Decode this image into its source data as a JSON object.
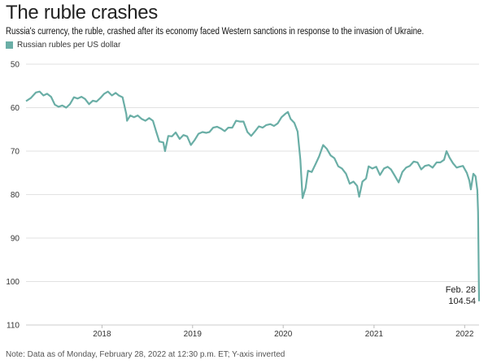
{
  "header": {
    "title": "The ruble crashes",
    "subtitle": "Russia's currency, the ruble, crashed after its economy faced Western sanctions in response to the invasion of Ukraine."
  },
  "footer": {
    "note": "Note: Data as of Monday, February 28, 2022 at 12:30 p.m. ET; Y-axis inverted"
  },
  "chart_data": {
    "type": "line",
    "title": "The ruble crashes",
    "legend": {
      "placement": "top-left",
      "entries": [
        "Russian rubles per US dollar"
      ]
    },
    "series": [
      {
        "name": "Russian rubles per US dollar",
        "color": "#6aaea6",
        "points": [
          [
            "2017-03-01",
            58.5
          ],
          [
            "2017-03-20",
            57.8
          ],
          [
            "2017-04-10",
            56.5
          ],
          [
            "2017-04-25",
            56.3
          ],
          [
            "2017-05-10",
            57.2
          ],
          [
            "2017-05-25",
            56.8
          ],
          [
            "2017-06-10",
            57.5
          ],
          [
            "2017-06-25",
            59.3
          ],
          [
            "2017-07-10",
            59.8
          ],
          [
            "2017-07-25",
            59.5
          ],
          [
            "2017-08-10",
            60.0
          ],
          [
            "2017-08-25",
            59.2
          ],
          [
            "2017-09-10",
            57.6
          ],
          [
            "2017-09-25",
            57.9
          ],
          [
            "2017-10-10",
            57.5
          ],
          [
            "2017-10-25",
            58.0
          ],
          [
            "2017-11-10",
            59.2
          ],
          [
            "2017-11-25",
            58.4
          ],
          [
            "2017-12-10",
            58.6
          ],
          [
            "2017-12-25",
            57.8
          ],
          [
            "2018-01-10",
            56.8
          ],
          [
            "2018-01-25",
            56.3
          ],
          [
            "2018-02-10",
            57.2
          ],
          [
            "2018-02-25",
            56.6
          ],
          [
            "2018-03-10",
            57.2
          ],
          [
            "2018-03-25",
            57.6
          ],
          [
            "2018-04-09",
            61.5
          ],
          [
            "2018-04-12",
            63.0
          ],
          [
            "2018-04-25",
            61.8
          ],
          [
            "2018-05-10",
            62.2
          ],
          [
            "2018-05-25",
            61.8
          ],
          [
            "2018-06-10",
            62.6
          ],
          [
            "2018-06-25",
            63.0
          ],
          [
            "2018-07-10",
            62.4
          ],
          [
            "2018-07-25",
            63.0
          ],
          [
            "2018-08-08",
            65.6
          ],
          [
            "2018-08-20",
            67.8
          ],
          [
            "2018-09-05",
            68.0
          ],
          [
            "2018-09-12",
            70.0
          ],
          [
            "2018-09-25",
            66.5
          ],
          [
            "2018-10-10",
            66.6
          ],
          [
            "2018-10-25",
            65.7
          ],
          [
            "2018-11-10",
            67.2
          ],
          [
            "2018-11-25",
            66.3
          ],
          [
            "2018-12-10",
            66.6
          ],
          [
            "2018-12-25",
            68.6
          ],
          [
            "2019-01-10",
            67.4
          ],
          [
            "2019-01-25",
            66.0
          ],
          [
            "2019-02-10",
            65.6
          ],
          [
            "2019-02-25",
            65.8
          ],
          [
            "2019-03-10",
            65.6
          ],
          [
            "2019-03-25",
            64.6
          ],
          [
            "2019-04-10",
            64.4
          ],
          [
            "2019-04-25",
            64.8
          ],
          [
            "2019-05-10",
            65.4
          ],
          [
            "2019-05-25",
            64.6
          ],
          [
            "2019-06-10",
            64.6
          ],
          [
            "2019-06-25",
            63.0
          ],
          [
            "2019-07-10",
            63.2
          ],
          [
            "2019-07-25",
            63.2
          ],
          [
            "2019-08-10",
            65.6
          ],
          [
            "2019-08-25",
            66.5
          ],
          [
            "2019-09-10",
            65.4
          ],
          [
            "2019-09-25",
            64.3
          ],
          [
            "2019-10-10",
            64.6
          ],
          [
            "2019-10-25",
            64.0
          ],
          [
            "2019-11-10",
            63.8
          ],
          [
            "2019-11-25",
            64.2
          ],
          [
            "2019-12-10",
            63.6
          ],
          [
            "2019-12-25",
            62.2
          ],
          [
            "2020-01-10",
            61.4
          ],
          [
            "2020-01-20",
            61.0
          ],
          [
            "2020-01-31",
            62.6
          ],
          [
            "2020-02-15",
            63.5
          ],
          [
            "2020-02-28",
            65.5
          ],
          [
            "2020-03-10",
            72.0
          ],
          [
            "2020-03-19",
            80.8
          ],
          [
            "2020-03-31",
            78.5
          ],
          [
            "2020-04-10",
            74.5
          ],
          [
            "2020-04-25",
            74.8
          ],
          [
            "2020-05-10",
            73.0
          ],
          [
            "2020-05-25",
            71.2
          ],
          [
            "2020-06-10",
            68.6
          ],
          [
            "2020-06-25",
            69.5
          ],
          [
            "2020-07-10",
            71.0
          ],
          [
            "2020-07-25",
            71.6
          ],
          [
            "2020-08-10",
            73.5
          ],
          [
            "2020-08-25",
            74.0
          ],
          [
            "2020-09-10",
            75.2
          ],
          [
            "2020-09-25",
            77.5
          ],
          [
            "2020-10-10",
            77.0
          ],
          [
            "2020-10-25",
            78.0
          ],
          [
            "2020-11-02",
            80.5
          ],
          [
            "2020-11-15",
            77.0
          ],
          [
            "2020-11-30",
            76.3
          ],
          [
            "2020-12-10",
            73.5
          ],
          [
            "2020-12-25",
            74.0
          ],
          [
            "2021-01-10",
            73.6
          ],
          [
            "2021-01-25",
            75.5
          ],
          [
            "2021-02-10",
            74.0
          ],
          [
            "2021-02-25",
            73.6
          ],
          [
            "2021-03-10",
            74.2
          ],
          [
            "2021-03-25",
            75.6
          ],
          [
            "2021-04-10",
            77.2
          ],
          [
            "2021-04-25",
            74.8
          ],
          [
            "2021-05-10",
            73.8
          ],
          [
            "2021-05-25",
            73.4
          ],
          [
            "2021-06-10",
            72.4
          ],
          [
            "2021-06-25",
            72.6
          ],
          [
            "2021-07-10",
            74.2
          ],
          [
            "2021-07-25",
            73.4
          ],
          [
            "2021-08-10",
            73.2
          ],
          [
            "2021-08-25",
            73.8
          ],
          [
            "2021-09-10",
            72.6
          ],
          [
            "2021-09-25",
            72.6
          ],
          [
            "2021-10-10",
            72.0
          ],
          [
            "2021-10-20",
            70.0
          ],
          [
            "2021-11-01",
            71.5
          ],
          [
            "2021-11-15",
            72.8
          ],
          [
            "2021-11-30",
            73.8
          ],
          [
            "2021-12-10",
            73.6
          ],
          [
            "2021-12-25",
            73.4
          ],
          [
            "2022-01-10",
            75.0
          ],
          [
            "2022-01-20",
            76.8
          ],
          [
            "2022-01-26",
            78.8
          ],
          [
            "2022-02-05",
            75.2
          ],
          [
            "2022-02-14",
            75.8
          ],
          [
            "2022-02-21",
            79.0
          ],
          [
            "2022-02-24",
            84.0
          ],
          [
            "2022-02-28",
            104.54
          ]
        ]
      }
    ],
    "xlim": [
      "2017-03-01",
      "2022-02-28"
    ],
    "ylim": [
      50,
      110
    ],
    "y_inverted": true,
    "y_ticks": [
      50,
      60,
      70,
      80,
      90,
      100,
      110
    ],
    "x_ticks": [
      "2018",
      "2019",
      "2020",
      "2021",
      "2022"
    ],
    "grid": "horizontal",
    "annotation": {
      "date_label": "Feb. 28",
      "value_label": "104.54"
    }
  }
}
